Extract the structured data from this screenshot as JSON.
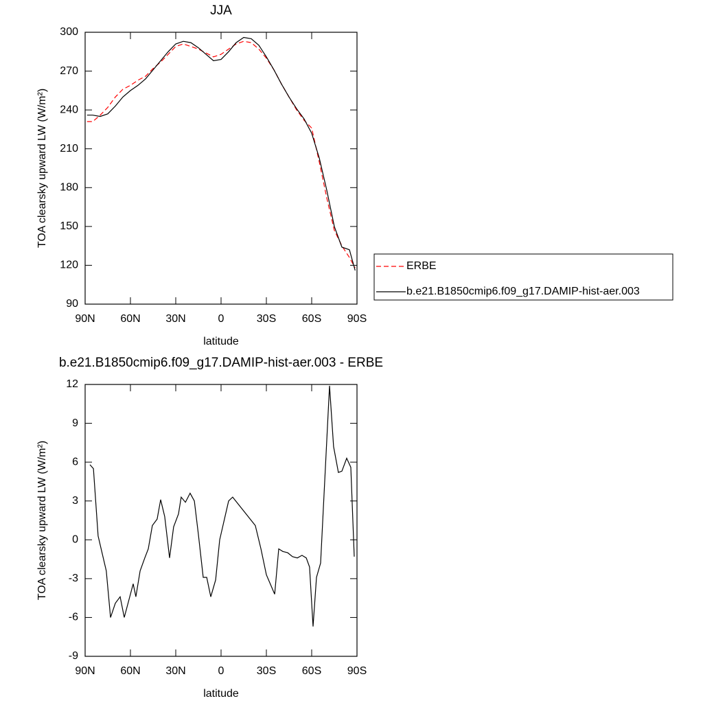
{
  "chart_data": [
    {
      "type": "line",
      "title": "JJA",
      "xlabel": "latitude",
      "ylabel": "TOA clearsky upward LW (W/m²)",
      "x": [
        88.75,
        85,
        80,
        75,
        70,
        65,
        60,
        55,
        50,
        45,
        40,
        35,
        30,
        25,
        20,
        15,
        10,
        5,
        0,
        -5,
        -10,
        -15,
        -20,
        -25,
        -30,
        -35,
        -40,
        -45,
        -50,
        -55,
        -60,
        -65,
        -70,
        -75,
        -80,
        -85,
        -88.75
      ],
      "series": [
        {
          "name": "ERBE",
          "color": "#ff0000",
          "style": "dashed",
          "values": [
            231,
            231,
            236,
            242,
            250,
            256,
            259,
            263,
            266,
            272,
            277,
            283,
            289,
            291,
            289,
            287,
            284,
            281,
            283,
            287,
            291,
            293,
            292,
            287,
            280,
            271,
            260,
            250,
            240,
            232,
            226,
            200,
            172,
            147,
            135,
            126,
            118
          ]
        },
        {
          "name": "b.e21.B1850cmip6.f09_g17.DAMIP-hist-aer.003",
          "color": "#000000",
          "style": "solid",
          "values": [
            236,
            236,
            235,
            237,
            243,
            250,
            255,
            259,
            264,
            271,
            278,
            285,
            291,
            293,
            292,
            288,
            283,
            278,
            279,
            285,
            292,
            296,
            295,
            290,
            281,
            271,
            260,
            250,
            241,
            233,
            222,
            203,
            178,
            150,
            134,
            132,
            116
          ]
        }
      ],
      "xlim": [
        90,
        -90
      ],
      "xticks": [
        {
          "value": 90,
          "label": "90N"
        },
        {
          "value": 60,
          "label": "60N"
        },
        {
          "value": 30,
          "label": "30N"
        },
        0,
        {
          "value": -30,
          "label": "30S"
        },
        {
          "value": -60,
          "label": "60S"
        },
        {
          "value": -90,
          "label": "90S"
        }
      ],
      "ylim": [
        90,
        300
      ],
      "yticks": [
        90,
        120,
        150,
        180,
        210,
        240,
        270,
        300
      ],
      "legend": "right"
    },
    {
      "type": "line",
      "title": "b.e21.B1850cmip6.f09_g17.DAMIP-hist-aer.003 - ERBE",
      "xlabel": "latitude",
      "ylabel": "TOA clearsky upward LW (W/m²)",
      "x": [
        86.8,
        84.5,
        81.4,
        76,
        73.2,
        70,
        66.8,
        64.1,
        58.2,
        56.4,
        53.6,
        50.5,
        48.2,
        45.5,
        42.3,
        40,
        37.3,
        34.1,
        31.4,
        28.2,
        26.4,
        23.6,
        20.5,
        17.7,
        15,
        11.8,
        9.5,
        6.8,
        3.6,
        0.9,
        -5,
        -7.7,
        -22.7,
        -26.4,
        -30,
        -35.5,
        -38.2,
        -40.9,
        -44.1,
        -47.3,
        -50.5,
        -53.6,
        -56.4,
        -58.6,
        -60.9,
        -63.2,
        -65.9,
        -68.2,
        -71.8,
        -74.5,
        -77.7,
        -80,
        -83.2,
        -85.9,
        -88.2
      ],
      "series": [
        {
          "color": "#000000",
          "style": "solid",
          "values": [
            5.8,
            5.5,
            0.3,
            -2.4,
            -6.0,
            -4.9,
            -4.4,
            -6.0,
            -3.4,
            -4.4,
            -2.4,
            -1.4,
            -0.7,
            1.1,
            1.6,
            3.1,
            1.8,
            -1.4,
            1.0,
            2.0,
            3.3,
            2.9,
            3.6,
            3.0,
            0.4,
            -2.9,
            -2.9,
            -4.4,
            -3.1,
            0.0,
            3.0,
            3.3,
            1.1,
            -0.7,
            -2.7,
            -4.2,
            -0.7,
            -0.9,
            -1.0,
            -1.3,
            -1.4,
            -1.2,
            -1.4,
            -2.1,
            -6.7,
            -2.9,
            -1.8,
            3.5,
            11.9,
            7.2,
            5.2,
            5.3,
            6.3,
            5.6,
            -1.3
          ]
        }
      ],
      "xlim": [
        90,
        -90
      ],
      "xticks": [
        {
          "value": 90,
          "label": "90N"
        },
        {
          "value": 60,
          "label": "60N"
        },
        {
          "value": 30,
          "label": "30N"
        },
        0,
        {
          "value": -30,
          "label": "30S"
        },
        {
          "value": -60,
          "label": "60S"
        },
        {
          "value": -90,
          "label": "90S"
        }
      ],
      "ylim": [
        -9,
        12
      ],
      "yticks": [
        -9,
        -6,
        -3,
        0,
        3,
        6,
        9,
        12
      ]
    }
  ]
}
